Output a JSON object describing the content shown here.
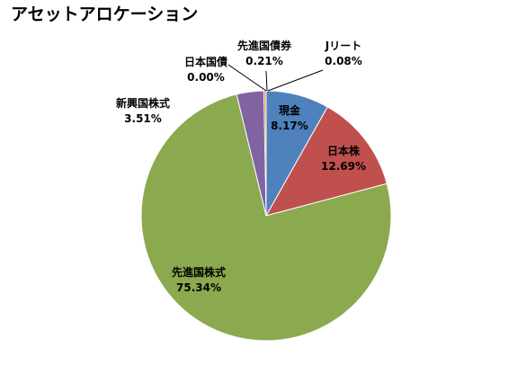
{
  "chart_data": {
    "type": "pie",
    "title": "アセットアロケーション",
    "slices": [
      {
        "label": "現金",
        "value": 8.17,
        "value_label": "8.17%",
        "color": "#4F81BD"
      },
      {
        "label": "日本株",
        "value": 12.69,
        "value_label": "12.69%",
        "color": "#C0504D"
      },
      {
        "label": "先進国株式",
        "value": 75.34,
        "value_label": "75.34%",
        "color": "#8BA94F"
      },
      {
        "label": "新興国株式",
        "value": 3.51,
        "value_label": "3.51%",
        "color": "#8064A2"
      },
      {
        "label": "日本国債",
        "value": 0.0,
        "value_label": "0.00%",
        "color": "#4BACC6"
      },
      {
        "label": "先進国債券",
        "value": 0.21,
        "value_label": "0.21%",
        "color": "#F79646"
      },
      {
        "label": "Jリート",
        "value": 0.08,
        "value_label": "0.08%",
        "color": "#2C4D75"
      }
    ],
    "start_angle_deg": 0,
    "direction": "clockwise",
    "legend": "none"
  }
}
